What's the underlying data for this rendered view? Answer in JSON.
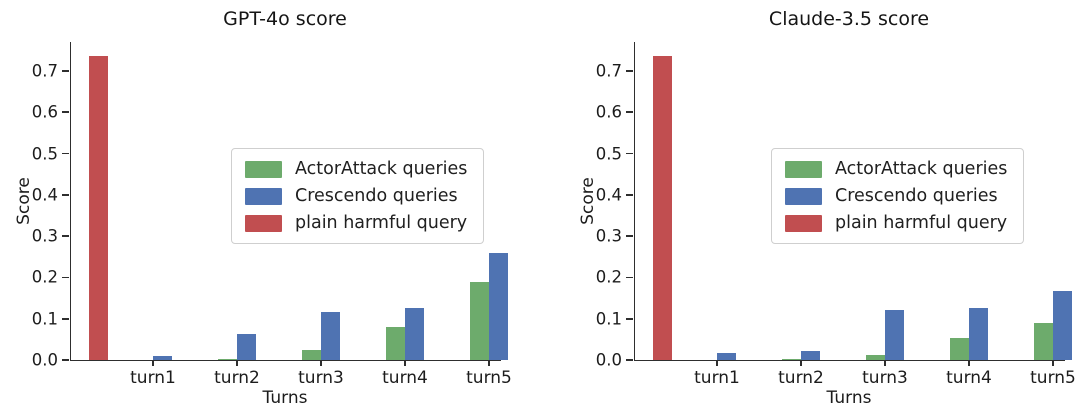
{
  "palette": {
    "actorattack_green": "#6dab6c",
    "crescendo_blue": "#4f73b2",
    "plain_harmful_red": "#c14e50",
    "axis_color": "#2e2e2e"
  },
  "chart_data": [
    {
      "type": "bar",
      "title": "GPT-4o score",
      "xlabel": "Turns",
      "ylabel": "Score",
      "categories": [
        "turn1",
        "turn2",
        "turn3",
        "turn4",
        "turn5"
      ],
      "ytick_labels": [
        "0.0",
        "0.1",
        "0.2",
        "0.3",
        "0.4",
        "0.5",
        "0.6",
        "0.7"
      ],
      "ylim": [
        0,
        0.77
      ],
      "grid": false,
      "legend_position": "center-right",
      "series": [
        {
          "name": "ActorAttack queries",
          "color": "#6dab6c",
          "values": [
            0.0,
            0.002,
            0.024,
            0.079,
            0.19
          ]
        },
        {
          "name": "Crescendo queries",
          "color": "#4f73b2",
          "values": [
            0.01,
            0.063,
            0.116,
            0.125,
            0.258
          ]
        }
      ],
      "baseline_bar": {
        "name": "plain harmful query",
        "color": "#c14e50",
        "value": 0.735
      },
      "legend": [
        {
          "label": "ActorAttack queries",
          "color": "#6dab6c"
        },
        {
          "label": "Crescendo queries",
          "color": "#4f73b2"
        },
        {
          "label": "plain harmful query",
          "color": "#c14e50"
        }
      ]
    },
    {
      "type": "bar",
      "title": "Claude-3.5 score",
      "xlabel": "Turns",
      "ylabel": "Score",
      "categories": [
        "turn1",
        "turn2",
        "turn3",
        "turn4",
        "turn5"
      ],
      "ytick_labels": [
        "0.0",
        "0.1",
        "0.2",
        "0.3",
        "0.4",
        "0.5",
        "0.6",
        "0.7"
      ],
      "ylim": [
        0,
        0.77
      ],
      "grid": false,
      "legend_position": "center-right",
      "series": [
        {
          "name": "ActorAttack queries",
          "color": "#6dab6c",
          "values": [
            0.0,
            0.002,
            0.011,
            0.053,
            0.089
          ]
        },
        {
          "name": "Crescendo queries",
          "color": "#4f73b2",
          "values": [
            0.016,
            0.022,
            0.122,
            0.127,
            0.167
          ]
        }
      ],
      "baseline_bar": {
        "name": "plain harmful query",
        "color": "#c14e50",
        "value": 0.735
      },
      "legend": [
        {
          "label": "ActorAttack queries",
          "color": "#6dab6c"
        },
        {
          "label": "Crescendo queries",
          "color": "#4f73b2"
        },
        {
          "label": "plain harmful query",
          "color": "#c14e50"
        }
      ]
    }
  ]
}
